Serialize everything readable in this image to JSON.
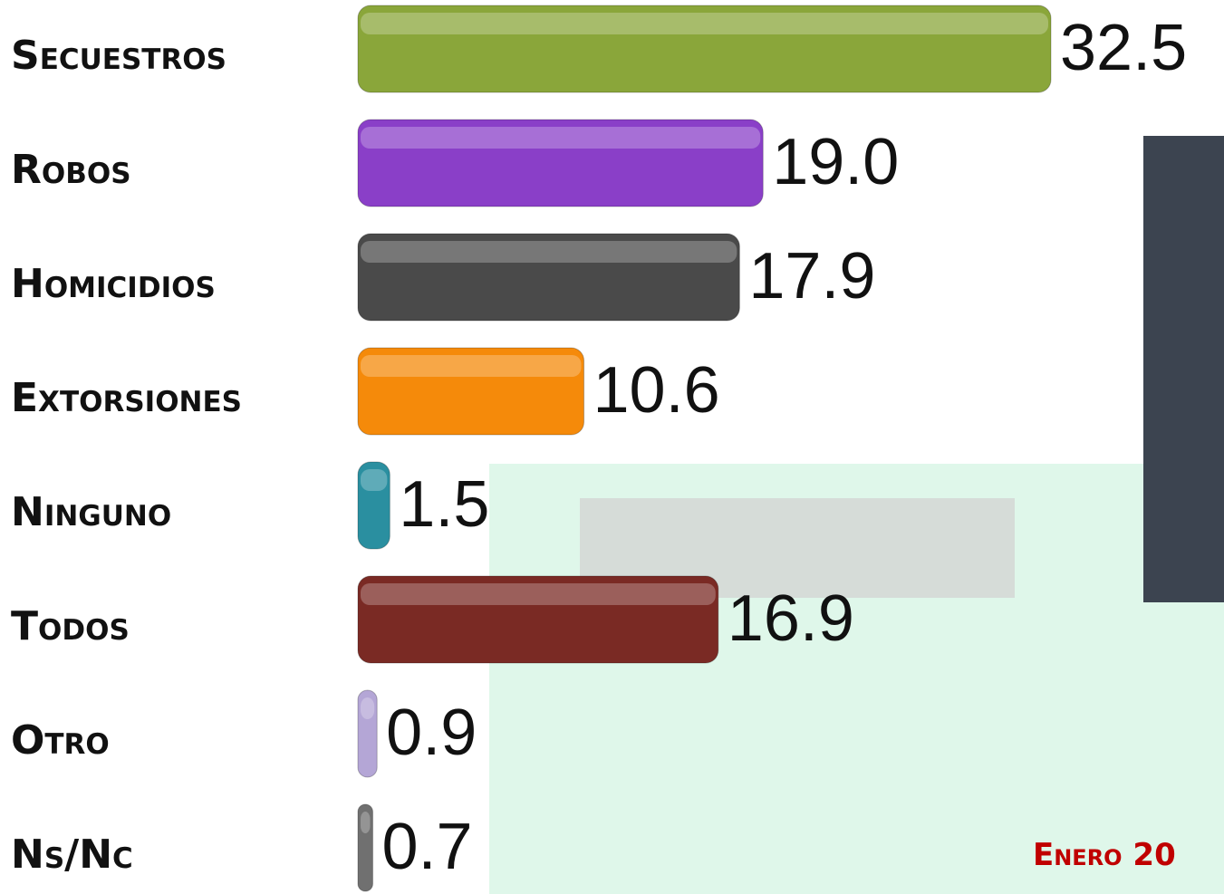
{
  "chart_data": {
    "type": "bar",
    "categories": [
      "Secuestros",
      "Robos",
      "Homicidios",
      "Extorsiones",
      "Ninguno",
      "Todos",
      "Otro",
      "Ns/Nc"
    ],
    "values": [
      32.5,
      19.0,
      17.9,
      10.6,
      1.5,
      16.9,
      0.9,
      0.7
    ],
    "value_labels": [
      "32.5",
      "19.0",
      "17.9",
      "10.6",
      "1.5",
      "16.9",
      "0.9",
      "0.7"
    ],
    "colors": [
      "#8aa63a",
      "#8a3fc8",
      "#4a4a4a",
      "#f58a0a",
      "#2a8fa0",
      "#7a2a24",
      "#b4a6d6",
      "#707070"
    ],
    "annotation": "Enero 20"
  }
}
